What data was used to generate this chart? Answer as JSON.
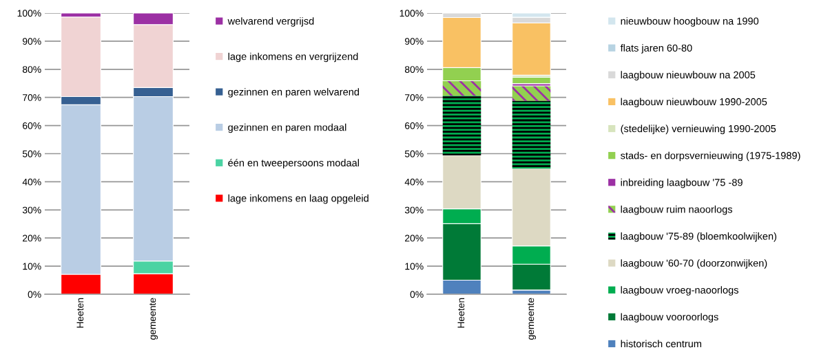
{
  "chart_data": [
    {
      "type": "bar",
      "stacked": true,
      "categories": [
        "Heeten",
        "gemeente"
      ],
      "ylim": [
        0,
        100
      ],
      "yticks": [
        {
          "value": 0,
          "label": "0%"
        },
        {
          "value": 10,
          "label": "10%"
        },
        {
          "value": 20,
          "label": "20%"
        },
        {
          "value": 30,
          "label": "30%"
        },
        {
          "value": 40,
          "label": "40%"
        },
        {
          "value": 50,
          "label": "50%"
        },
        {
          "value": 60,
          "label": "60%"
        },
        {
          "value": 70,
          "label": "70%"
        },
        {
          "value": 80,
          "label": "80%"
        },
        {
          "value": 90,
          "label": "90%"
        },
        {
          "value": 100,
          "label": "100%"
        }
      ],
      "grid": "y",
      "legend": "right",
      "series": [
        {
          "name": "lage inkomens en laag opgeleid",
          "color": "#ff0000",
          "values": [
            7.1,
            7.3
          ]
        },
        {
          "name": "één en tweepersoons modaal",
          "color": "#4bd3a3",
          "values": [
            0,
            4.5
          ]
        },
        {
          "name": "gezinnen en paren modaal",
          "color": "#b9cde4",
          "values": [
            60.3,
            58.5
          ]
        },
        {
          "name": "gezinnen en paren welvarend",
          "color": "#366092",
          "values": [
            2.9,
            3.2
          ]
        },
        {
          "name": "lage inkomens en vergrijzend",
          "color": "#f0d3d3",
          "values": [
            28.3,
            22.4
          ]
        },
        {
          "name": "welvarend vergrijsd",
          "color": "#9c30a4",
          "values": [
            1.4,
            4.1
          ]
        }
      ]
    },
    {
      "type": "bar",
      "stacked": true,
      "categories": [
        "Heeten",
        "gemeente"
      ],
      "ylim": [
        0,
        100
      ],
      "yticks": [
        {
          "value": 0,
          "label": "0%"
        },
        {
          "value": 10,
          "label": "10%"
        },
        {
          "value": 20,
          "label": "20%"
        },
        {
          "value": 30,
          "label": "30%"
        },
        {
          "value": 40,
          "label": "40%"
        },
        {
          "value": 50,
          "label": "50%"
        },
        {
          "value": 60,
          "label": "60%"
        },
        {
          "value": 70,
          "label": "70%"
        },
        {
          "value": 80,
          "label": "80%"
        },
        {
          "value": 90,
          "label": "90%"
        },
        {
          "value": 100,
          "label": "100%"
        }
      ],
      "grid": "y",
      "legend": "right",
      "series": [
        {
          "name": "historisch centrum",
          "color": "#4f81bd",
          "values": [
            5.0,
            1.5
          ]
        },
        {
          "name": "laagbouw vooroorlogs",
          "color": "#007a37",
          "values": [
            20.1,
            9.2
          ]
        },
        {
          "name": "laagbouw vroeg-naoorlogs",
          "color": "#00ad50",
          "values": [
            5.3,
            6.5
          ]
        },
        {
          "name": "laagbouw '60-70 (doorzonwijken)",
          "color": "#ddd9c3",
          "values": [
            19.0,
            27.5
          ]
        },
        {
          "name": "laagbouw '75-89 (bloemkoolwijken)",
          "color": "#00ad50",
          "values": [
            21.2,
            24.1
          ]
        },
        {
          "name": "laagbouw ruim naoorlogs",
          "color": "#92d050",
          "values": [
            5.3,
            5.3
          ]
        },
        {
          "name": "inbreiding laagbouw '75 -89",
          "color": "#9c30a4",
          "values": [
            0,
            0.8
          ]
        },
        {
          "name": "stads- en dorpsvernieuwing (1975-1989)",
          "color": "#92d050",
          "values": [
            4.7,
            2.3
          ]
        },
        {
          "name": "(stedelijke) vernieuwing 1990-2005",
          "color": "#d7e4bd",
          "values": [
            0,
            0.7
          ]
        },
        {
          "name": "laagbouw nieuwbouw 1990-2005",
          "color": "#f9c163",
          "values": [
            17.8,
            18.6
          ]
        },
        {
          "name": "laagbouw nieuwbouw na 2005",
          "color": "#d9d9d9",
          "values": [
            1.6,
            2.0
          ]
        },
        {
          "name": "flats jaren 60-80",
          "color": "#b7d3e2",
          "values": [
            0,
            0
          ]
        },
        {
          "name": "nieuwbouw hoogbouw na 1990",
          "color": "#d3e6ee",
          "values": [
            0,
            1.5
          ]
        }
      ]
    }
  ]
}
